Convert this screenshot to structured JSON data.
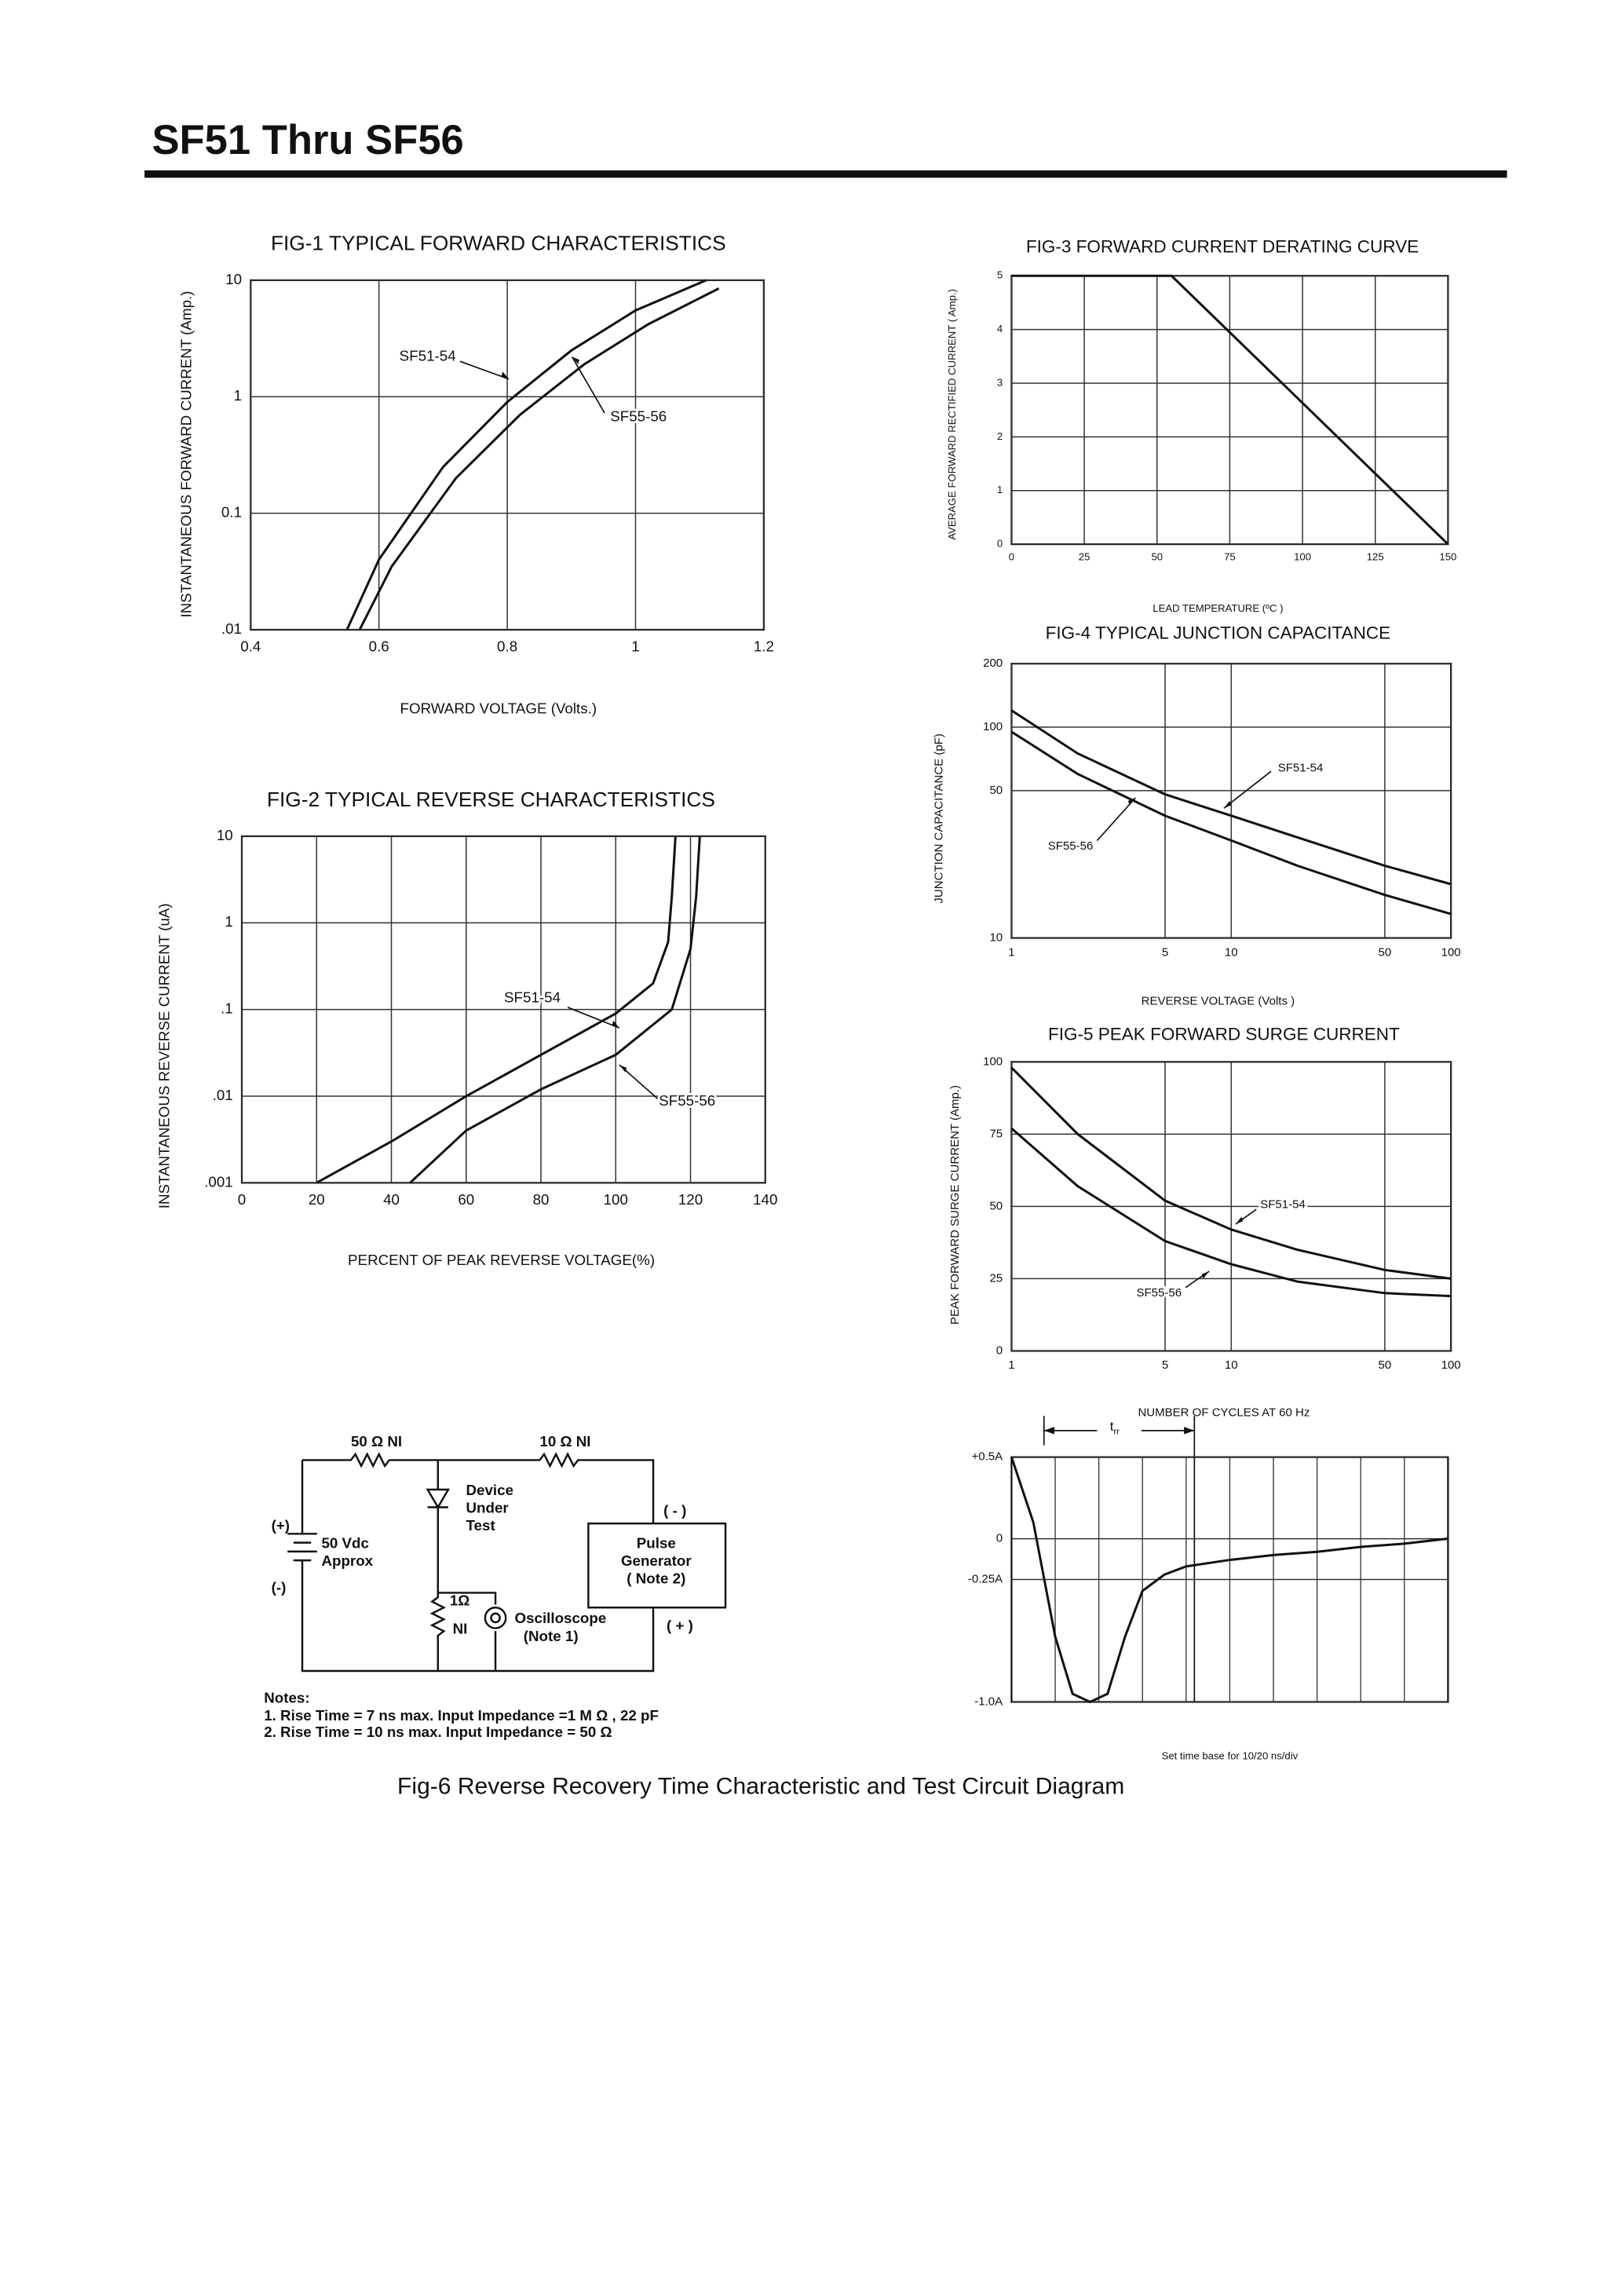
{
  "header": {
    "title": "SF51 Thru SF56"
  },
  "chart_data": [
    {
      "type": "line",
      "title": "FIG-1 TYPICAL FORWARD CHARACTERISTICS",
      "x_label": "FORWARD VOLTAGE (Volts.)",
      "y_label": "INSTANTANEOUS FORWARD CURRENT (Amp.)",
      "xlim": [
        0.4,
        1.2
      ],
      "xticks": [
        0.4,
        0.6,
        0.8,
        1,
        1.2
      ],
      "ylim": [
        0.01,
        10
      ],
      "ylog": true,
      "yticks": [
        {
          "value": 0.01,
          "label": ".01"
        },
        0.1,
        1,
        10
      ],
      "grid": true,
      "series": [
        {
          "name": "SF51-54",
          "color": "#111111",
          "x": [
            0.55,
            0.6,
            0.7,
            0.8,
            0.9,
            1.0,
            1.11
          ],
          "values": [
            0.01,
            0.04,
            0.25,
            0.9,
            2.5,
            5.5,
            10
          ]
        },
        {
          "name": "SF55-56",
          "color": "#111111",
          "x": [
            0.57,
            0.62,
            0.72,
            0.82,
            0.92,
            1.02,
            1.13
          ],
          "values": [
            0.01,
            0.035,
            0.2,
            0.7,
            1.9,
            4.2,
            8.5
          ]
        }
      ]
    },
    {
      "type": "line",
      "title": "FIG-2 TYPICAL REVERSE CHARACTERISTICS",
      "x_label": "PERCENT OF PEAK REVERSE VOLTAGE(%)",
      "y_label": "INSTANTANEOUS REVERSE CURRENT (uA)",
      "xlim": [
        0,
        140
      ],
      "xticks": [
        0,
        20,
        40,
        60,
        80,
        100,
        120,
        140
      ],
      "ylim": [
        0.001,
        10
      ],
      "ylog": true,
      "yticks": [
        {
          "value": 0.001,
          "label": ".001"
        },
        {
          "value": 0.01,
          "label": ".01"
        },
        {
          "value": 0.1,
          "label": ".1"
        },
        1,
        10
      ],
      "grid": true,
      "series": [
        {
          "name": "SF51-54",
          "color": "#111111",
          "x": [
            20,
            40,
            60,
            80,
            100,
            110,
            114,
            115,
            116
          ],
          "values": [
            0.001,
            0.003,
            0.01,
            0.03,
            0.09,
            0.2,
            0.6,
            2,
            10
          ]
        },
        {
          "name": "SF55-56",
          "color": "#111111",
          "x": [
            45,
            60,
            80,
            100,
            115,
            120,
            121.5,
            122.5
          ],
          "values": [
            0.001,
            0.004,
            0.012,
            0.03,
            0.1,
            0.5,
            2,
            10
          ]
        }
      ]
    },
    {
      "type": "line",
      "title": "FIG-3 FORWARD CURRENT DERATING CURVE",
      "x_label": "LEAD TEMPERATURE (ºC )",
      "y_label": "AVERAGE FORWARD RECTIFIED CURRENT ( Amp.)",
      "xlim": [
        0,
        150
      ],
      "xticks": [
        0,
        25,
        50,
        75,
        100,
        125,
        150
      ],
      "ylim": [
        0,
        5
      ],
      "yticks": [
        0,
        1,
        2,
        3,
        4,
        5
      ],
      "grid": true,
      "series": [
        {
          "color": "#111111",
          "x": [
            0,
            55,
            150
          ],
          "values": [
            5,
            5,
            0
          ]
        }
      ]
    },
    {
      "type": "line",
      "title": "FIG-4 TYPICAL JUNCTION CAPACITANCE",
      "x_label": "REVERSE VOLTAGE (Volts )",
      "y_label": "JUNCTION CAPACITANCE (pF)",
      "xlim": [
        1,
        100
      ],
      "xlog": true,
      "xticks": [
        1,
        5,
        10,
        50,
        100
      ],
      "ylim": [
        10,
        200
      ],
      "ylog": true,
      "yticks": [
        10,
        50,
        100,
        200
      ],
      "grid": true,
      "series": [
        {
          "name": "SF51-54",
          "color": "#111111",
          "x": [
            1,
            2,
            5,
            10,
            20,
            50,
            100
          ],
          "values": [
            120,
            75,
            48,
            38,
            30,
            22,
            18
          ]
        },
        {
          "name": "SF55-56",
          "color": "#111111",
          "x": [
            1,
            2,
            5,
            10,
            20,
            50,
            100
          ],
          "values": [
            95,
            60,
            38,
            29,
            22,
            16,
            13
          ]
        }
      ]
    },
    {
      "type": "line",
      "title": "FIG-5 PEAK FORWARD SURGE CURRENT",
      "x_label": "NUMBER OF CYCLES AT 60 Hz",
      "y_label": "PEAK FORWARD SURGE CURRENT (Amp.)",
      "xlim": [
        1,
        100
      ],
      "xlog": true,
      "xticks": [
        1,
        5,
        10,
        50,
        100
      ],
      "ylim": [
        0,
        100
      ],
      "yticks": [
        0,
        25,
        50,
        75,
        100
      ],
      "grid": true,
      "series": [
        {
          "name": "SF51-54",
          "color": "#111111",
          "x": [
            1,
            2,
            5,
            10,
            20,
            50,
            100
          ],
          "values": [
            98,
            75,
            52,
            42,
            35,
            28,
            25
          ]
        },
        {
          "name": "SF55-56",
          "color": "#111111",
          "x": [
            1,
            2,
            5,
            10,
            20,
            50,
            100
          ],
          "values": [
            77,
            57,
            38,
            30,
            24,
            20,
            19
          ]
        }
      ]
    },
    {
      "type": "line",
      "annotation": "Set time base for 10/20 ns/div",
      "trr_label": {
        "text": "t",
        "subscript": "rr"
      },
      "xlim": [
        0,
        10
      ],
      "ylim": [
        -1.0,
        0.5
      ],
      "yticks": [
        {
          "value": -1.0,
          "label": "-1.0A"
        },
        {
          "value": -0.25,
          "label": "-0.25A"
        },
        0,
        {
          "value": 0.5,
          "label": "+0.5A"
        }
      ],
      "grid": true,
      "series": [
        {
          "color": "#111111",
          "x": [
            0,
            0.5,
            1,
            1.4,
            1.8,
            2.2,
            2.6,
            3,
            3.5,
            4,
            5,
            6,
            7,
            8,
            9,
            10
          ],
          "values": [
            0.5,
            0.1,
            -0.6,
            -0.95,
            -1.0,
            -0.95,
            -0.6,
            -0.32,
            -0.22,
            -0.17,
            -0.13,
            -0.1,
            -0.08,
            -0.05,
            -0.03,
            0
          ]
        }
      ]
    }
  ],
  "circuit": {
    "labels": [
      "50 Ω  NI",
      "10 Ω  NI",
      "Device",
      "Under",
      "Test",
      "( - )",
      "(+)",
      "50 Vdc",
      "Approx",
      "(-)",
      "Pulse",
      "Generator",
      "( Note 2)",
      "1Ω",
      "NI",
      "Oscilloscope",
      "(Note 1)",
      "( + )"
    ]
  },
  "notes": {
    "heading": "Notes:",
    "items": [
      "1. Rise Time = 7 ns max. Input Impedance =1 M Ω , 22 pF",
      "2. Rise Time = 10 ns max. Input Impedance = 50 Ω"
    ]
  },
  "caption": "Fig-6 Reverse Recovery Time Characteristic and Test Circuit Diagram"
}
